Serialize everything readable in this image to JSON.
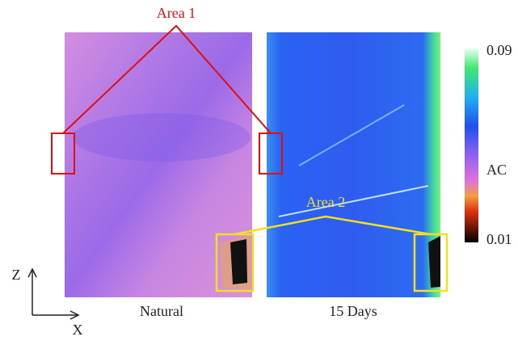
{
  "figure": {
    "area1": "Area 1",
    "area2": "Area 2",
    "colorbar": {
      "top": "0.09",
      "label": "AC",
      "bottom": "0.01"
    },
    "panels": [
      "Natural",
      "15 Days"
    ],
    "axes": {
      "vertical": "Z",
      "horizontal": "X"
    }
  }
}
